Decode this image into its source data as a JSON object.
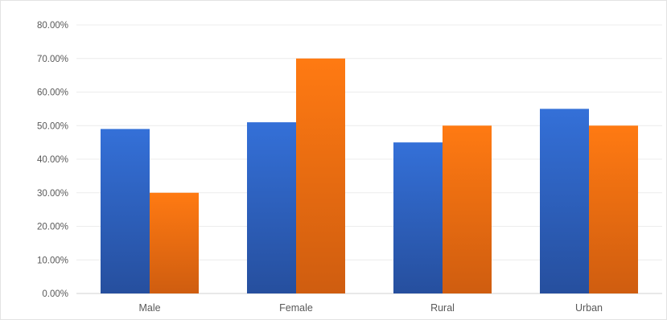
{
  "chart_data": {
    "type": "bar",
    "categories": [
      "Male",
      "Female",
      "Rural",
      "Urban"
    ],
    "series": [
      {
        "color": "#2f66c8",
        "values": [
          49,
          51,
          45,
          55
        ]
      },
      {
        "color": "#f0701a",
        "values": [
          30,
          70,
          50,
          50
        ]
      }
    ],
    "title": "",
    "xlabel": "",
    "ylabel": "",
    "ylim": [
      0,
      80
    ],
    "yticks": [
      0,
      10,
      20,
      30,
      40,
      50,
      60,
      70,
      80
    ],
    "ytick_labels": [
      "0.00%",
      "10.00%",
      "20.00%",
      "30.00%",
      "40.00%",
      "50.00%",
      "60.00%",
      "70.00%",
      "80.00%"
    ],
    "grid": true,
    "legend": "none"
  }
}
